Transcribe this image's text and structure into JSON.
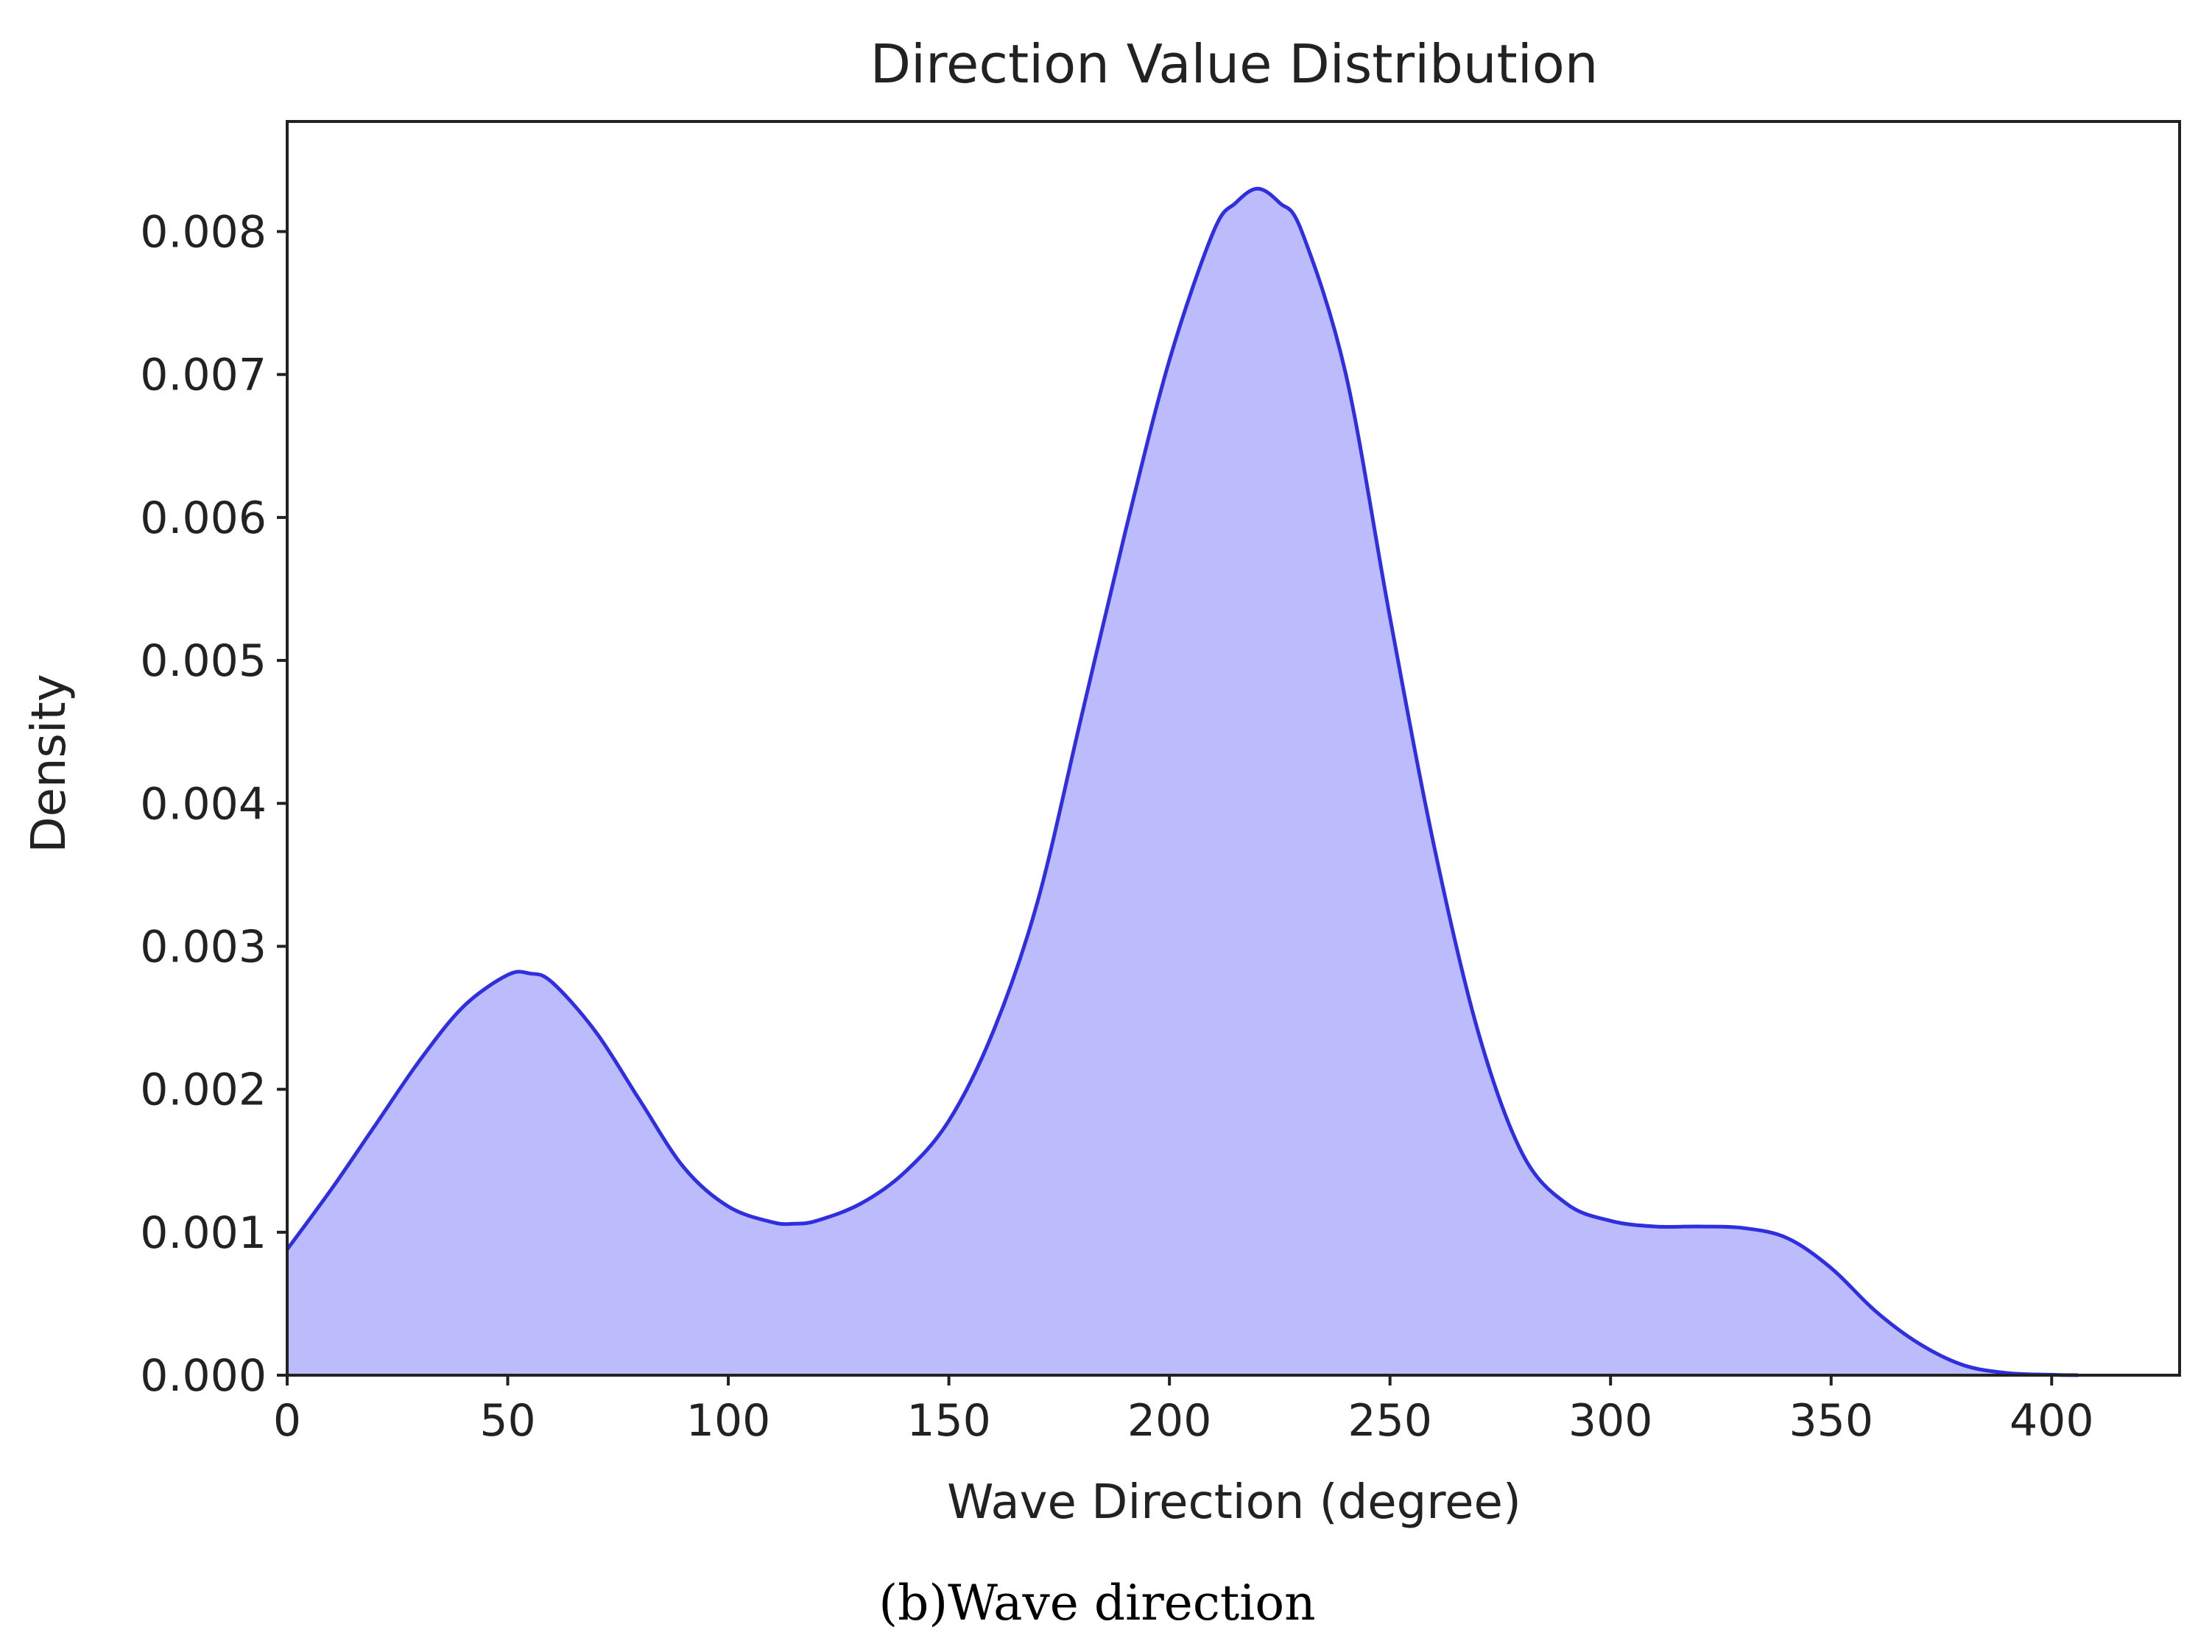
{
  "caption": "(b)Wave direction",
  "colors": {
    "line": "#2f2fe0",
    "fill": "#bcbcfc",
    "axis": "#222222",
    "text": "#222222",
    "background": "#ffffff"
  },
  "chart_data": {
    "type": "area",
    "title": "Direction Value Distribution",
    "xlabel": "Wave Direction (degree)",
    "ylabel": "Density",
    "xlim": [
      0,
      429
    ],
    "ylim": [
      0,
      0.00877
    ],
    "grid": false,
    "x_ticks": [
      0,
      50,
      100,
      150,
      200,
      250,
      300,
      350,
      400
    ],
    "x_tick_labels": [
      "0",
      "50",
      "100",
      "150",
      "200",
      "250",
      "300",
      "350",
      "400"
    ],
    "y_ticks": [
      0,
      0.001,
      0.002,
      0.003,
      0.004,
      0.005,
      0.006,
      0.007,
      0.008
    ],
    "y_tick_labels": [
      "0.000",
      "0.001",
      "0.002",
      "0.003",
      "0.004",
      "0.005",
      "0.006",
      "0.007",
      "0.008"
    ],
    "series": [
      {
        "x": [
          0,
          10,
          20,
          30,
          40,
          50,
          55,
          60,
          70,
          80,
          90,
          100,
          110,
          115,
          120,
          130,
          140,
          150,
          160,
          170,
          180,
          190,
          200,
          210,
          215,
          220,
          225,
          230,
          240,
          250,
          260,
          270,
          280,
          290,
          300,
          310,
          320,
          330,
          340,
          350,
          360,
          370,
          380,
          390,
          400,
          406
        ],
        "y": [
          0.00088,
          0.0013,
          0.00175,
          0.0022,
          0.00258,
          0.0028,
          0.00281,
          0.00275,
          0.0024,
          0.00192,
          0.00145,
          0.00118,
          0.00107,
          0.00106,
          0.00108,
          0.0012,
          0.00142,
          0.00178,
          0.0024,
          0.0033,
          0.0046,
          0.0059,
          0.0071,
          0.008,
          0.0082,
          0.0083,
          0.0082,
          0.008,
          0.007,
          0.0053,
          0.0037,
          0.0024,
          0.00155,
          0.0012,
          0.00108,
          0.00104,
          0.00104,
          0.00103,
          0.00096,
          0.00075,
          0.00045,
          0.00022,
          7e-05,
          1.5e-05,
          3e-06,
          0.0
        ]
      }
    ]
  }
}
